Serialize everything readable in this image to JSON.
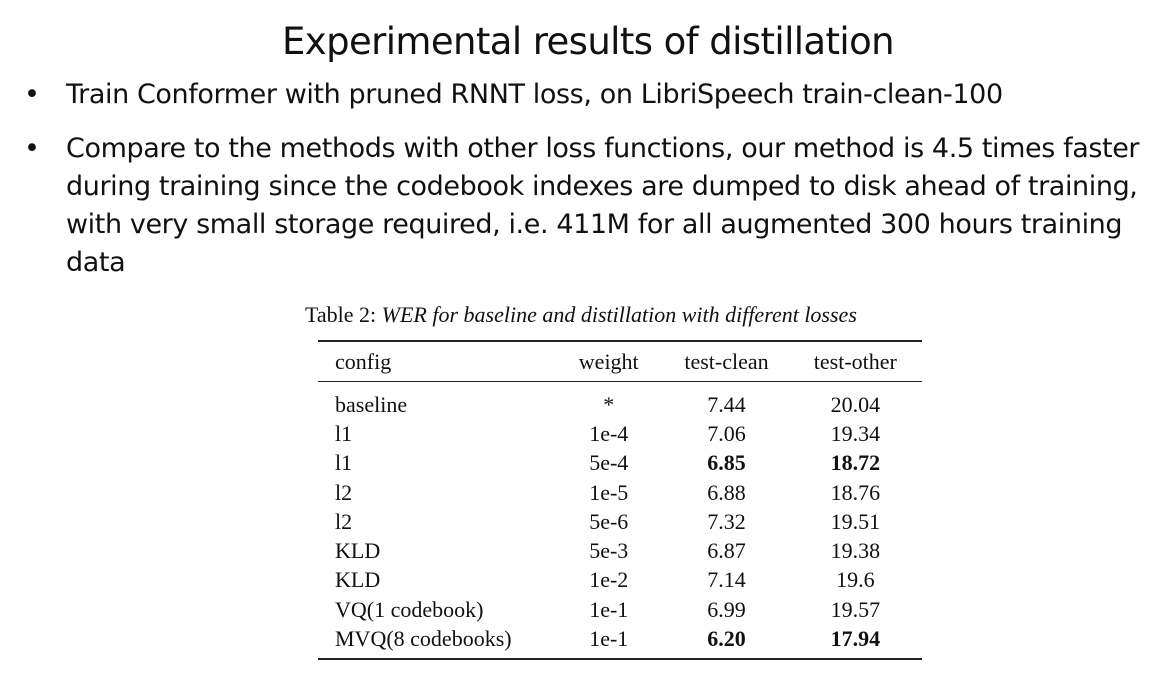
{
  "slide": {
    "title": "Experimental results of distillation",
    "bullets": [
      {
        "marker": "•",
        "text": "Train Conformer with pruned RNNT loss, on LibriSpeech train-clean-100"
      },
      {
        "marker": "•",
        "text": "Compare to the methods with other loss functions, our method is 4.5 times faster during training since the codebook indexes are dumped to disk ahead of training, with very small storage required, i.e. 411M for all augmented 300 hours training data"
      }
    ]
  },
  "table": {
    "caption_label": "Table 2:",
    "caption_text": "WER for baseline and distillation with different losses",
    "columns": [
      "config",
      "weight",
      "test-clean",
      "test-other"
    ],
    "rows": [
      {
        "config": "baseline",
        "weight": "*",
        "test_clean": "7.44",
        "test_other": "20.04"
      },
      {
        "config": "l1",
        "weight": "1e-4",
        "test_clean": "7.06",
        "test_other": "19.34"
      },
      {
        "config": "l1",
        "weight": "5e-4",
        "test_clean": "6.85",
        "test_other": "18.72"
      },
      {
        "config": "l2",
        "weight": "1e-5",
        "test_clean": "6.88",
        "test_other": "18.76"
      },
      {
        "config": "l2",
        "weight": "5e-6",
        "test_clean": "7.32",
        "test_other": "19.51"
      },
      {
        "config": "KLD",
        "weight": "5e-3",
        "test_clean": "6.87",
        "test_other": "19.38"
      },
      {
        "config": "KLD",
        "weight": "1e-2",
        "test_clean": "7.14",
        "test_other": "19.6"
      },
      {
        "config": "VQ(1 codebook)",
        "weight": "1e-1",
        "test_clean": "6.99",
        "test_other": "19.57"
      },
      {
        "config": "MVQ(8 codebooks)",
        "weight": "1e-1",
        "test_clean": "6.20",
        "test_other": "17.94"
      }
    ],
    "bold_cells": [
      "2.test_clean",
      "2.test_other",
      "8.test_clean",
      "8.test_other"
    ]
  }
}
